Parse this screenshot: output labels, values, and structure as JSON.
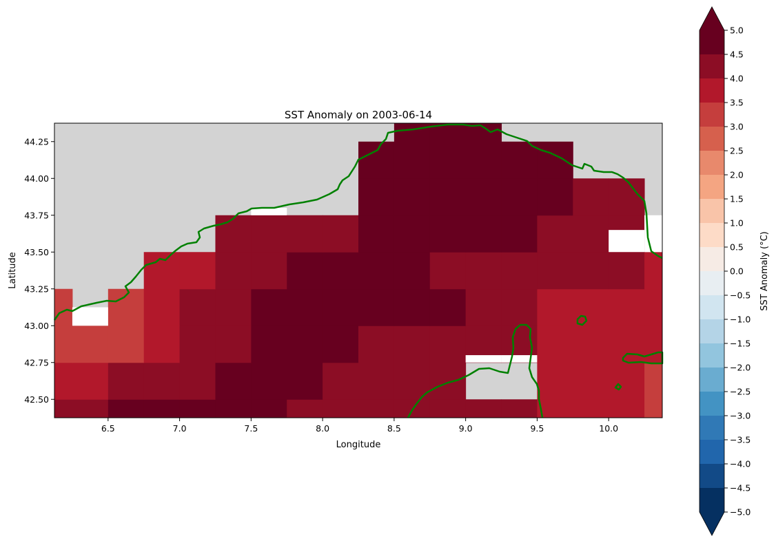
{
  "chart_data": {
    "type": "heatmap",
    "title": "SST Anomaly on 2003-06-14",
    "xlabel": "Longitude",
    "ylabel": "Latitude",
    "xlim": [
      6.125,
      10.375
    ],
    "ylim": [
      42.375,
      44.375
    ],
    "x_ticks": [
      "6.5",
      "7.0",
      "7.5",
      "8.0",
      "8.5",
      "9.0",
      "9.5",
      "10.0"
    ],
    "x_tick_values": [
      6.5,
      7.0,
      7.5,
      8.0,
      8.5,
      9.0,
      9.5,
      10.0
    ],
    "y_ticks": [
      "42.50",
      "42.75",
      "43.00",
      "43.25",
      "43.50",
      "43.75",
      "44.00",
      "44.25"
    ],
    "y_tick_values": [
      42.5,
      42.75,
      43.0,
      43.25,
      43.5,
      43.75,
      44.0,
      44.25
    ],
    "grid": false,
    "land_color": "#d3d3d3",
    "coastline_color": "#008000",
    "cell_size_deg": 0.25,
    "lon_centers": [
      6.125,
      6.375,
      6.625,
      6.875,
      7.125,
      7.375,
      7.625,
      7.875,
      8.125,
      8.375,
      8.625,
      8.875,
      9.125,
      9.375,
      9.625,
      9.875,
      10.125,
      10.375
    ],
    "lat_centers": [
      42.375,
      42.625,
      42.875,
      43.125,
      43.375,
      43.625,
      43.875,
      44.125,
      44.375
    ],
    "values_note": "rows from lat 42.375 upward; null = no data",
    "values": [
      [
        4.2,
        4.3,
        4.6,
        4.6,
        4.6,
        4.6,
        4.6,
        4.3,
        4.3,
        4.3,
        4.3,
        4.3,
        4.3,
        4.3,
        3.8,
        3.8,
        3.8,
        3.3
      ],
      [
        3.8,
        3.8,
        4.2,
        4.2,
        4.2,
        4.6,
        4.6,
        4.6,
        4.3,
        4.3,
        4.3,
        4.3,
        null,
        null,
        3.8,
        3.8,
        3.8,
        3.3
      ],
      [
        3.3,
        3.3,
        3.3,
        3.8,
        4.2,
        4.2,
        4.6,
        4.6,
        4.6,
        4.3,
        4.3,
        4.3,
        4.3,
        4.3,
        3.8,
        3.8,
        3.8,
        3.8
      ],
      [
        3.3,
        null,
        3.3,
        3.8,
        4.2,
        4.2,
        4.6,
        4.6,
        4.6,
        4.6,
        4.6,
        4.6,
        4.3,
        4.3,
        3.8,
        3.8,
        3.8,
        3.8
      ],
      [
        null,
        null,
        null,
        3.8,
        3.8,
        4.2,
        4.2,
        4.6,
        4.6,
        4.6,
        4.6,
        4.3,
        4.3,
        4.3,
        4.3,
        4.3,
        4.3,
        3.8
      ],
      [
        null,
        null,
        null,
        null,
        null,
        4.2,
        4.2,
        4.2,
        4.2,
        4.6,
        4.6,
        4.6,
        4.6,
        4.6,
        4.3,
        4.3,
        4.3,
        null
      ],
      [
        null,
        null,
        null,
        null,
        null,
        null,
        null,
        null,
        null,
        4.6,
        4.6,
        4.6,
        4.6,
        4.6,
        4.6,
        4.3,
        4.3,
        null
      ],
      [
        null,
        null,
        null,
        null,
        null,
        null,
        null,
        null,
        null,
        4.6,
        4.6,
        4.6,
        4.6,
        4.6,
        4.6,
        null,
        null,
        null
      ],
      [
        null,
        null,
        null,
        null,
        null,
        null,
        null,
        null,
        null,
        null,
        4.6,
        4.6,
        4.6,
        null,
        null,
        null,
        null,
        null
      ]
    ]
  },
  "colorbar": {
    "label": "SST Anomaly (°C)",
    "min": -5.0,
    "max": 5.0,
    "step": 0.5,
    "extend": "both",
    "tick_labels": [
      "5.0",
      "4.5",
      "4.0",
      "3.5",
      "3.0",
      "2.5",
      "2.0",
      "1.5",
      "1.0",
      "0.5",
      "0.0",
      "−0.5",
      "−1.0",
      "−1.5",
      "−2.0",
      "−2.5",
      "−3.0",
      "−3.5",
      "−4.0",
      "−4.5",
      "−5.0"
    ],
    "colors_top_to_bottom": [
      "#67001f",
      "#8c0d25",
      "#b2182b",
      "#c53e3d",
      "#d6604d",
      "#e8896c",
      "#f4a582",
      "#f9c4a9",
      "#fddbc7",
      "#f6ebe5",
      "#f7f7f7",
      "#e8eef2",
      "#d1e5f0",
      "#b4d4e7",
      "#92c5de",
      "#6aacd0",
      "#4393c3",
      "#3079b6",
      "#2166ac",
      "#124a87",
      "#053061"
    ],
    "over_color": "#67001f",
    "under_color": "#053061"
  }
}
